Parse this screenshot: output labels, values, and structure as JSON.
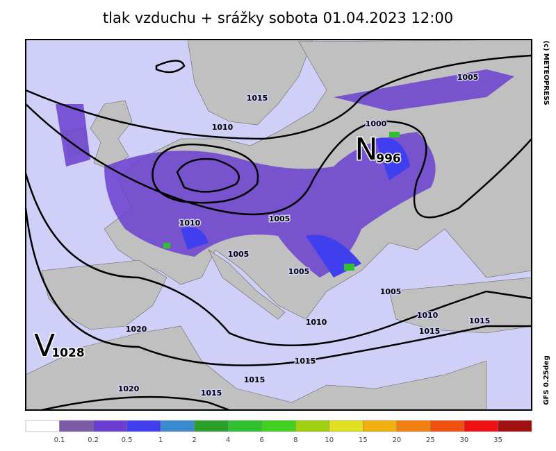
{
  "header": {
    "title": "tlak vzduchu + srážky  sobota 01.04.2023 12:00"
  },
  "side": {
    "copyright": "(c)  METEOPRESS",
    "model": "GFS  0.25deg"
  },
  "centers": [
    {
      "letter": "N",
      "value": "996"
    },
    {
      "letter": "V",
      "value": "1028"
    }
  ],
  "isobar_labels": [
    "1015",
    "1010",
    "1000",
    "1005",
    "1010",
    "1005",
    "1005",
    "1005",
    "1005",
    "1010",
    "1010",
    "1015",
    "1015",
    "1020",
    "1015",
    "1015",
    "1020",
    "1015"
  ],
  "legend": {
    "colors": [
      "#ffffff",
      "#7b5aa8",
      "#6a3fd0",
      "#3f3ff0",
      "#3a8ad0",
      "#2aa02a",
      "#30c030",
      "#44d020",
      "#a0d010",
      "#e0e020",
      "#f0b010",
      "#f08010",
      "#f05010",
      "#f01010",
      "#a01010"
    ],
    "labels": [
      "0.1",
      "0.2",
      "0.5",
      "1",
      "2",
      "4",
      "6",
      "8",
      "10",
      "15",
      "20",
      "25",
      "30",
      "35"
    ]
  }
}
